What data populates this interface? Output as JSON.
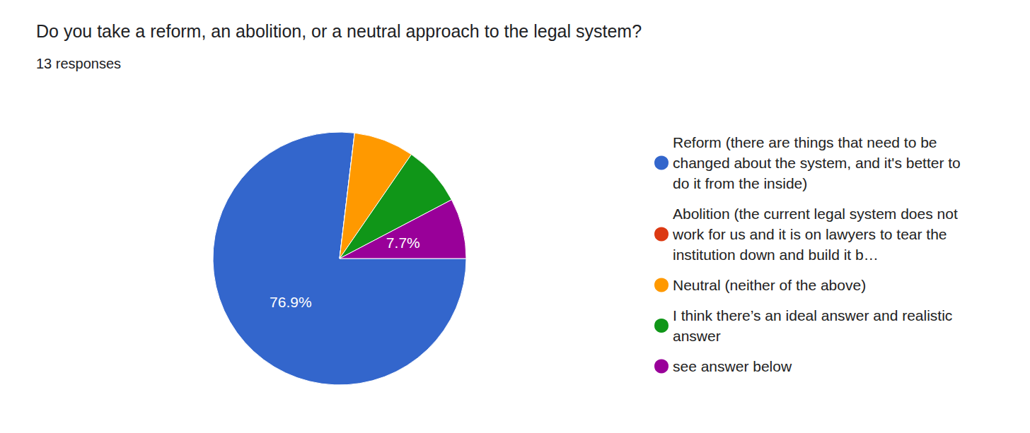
{
  "chart_data": {
    "type": "pie",
    "title": "Do you take a reform, an abolition, or a neutral approach to the legal system?",
    "subtitle": "13 responses",
    "categories": [
      "Reform (there are things that need to be changed about the system, and it's better to do it from the inside)",
      "Abolition (the current legal system does not work for us and it is on lawyers to tear the institution down and build it b…",
      "Neutral (neither of the above)",
      "I think there’s an ideal answer and realistic answer",
      "see answer below"
    ],
    "values": [
      76.9,
      0,
      7.7,
      7.7,
      7.7
    ],
    "value_labels": [
      "76.9%",
      null,
      null,
      null,
      "7.7%"
    ],
    "data_labels": true,
    "colors": [
      "#3366cc",
      "#dc3912",
      "#ff9900",
      "#109618",
      "#990099"
    ],
    "legend": "right"
  }
}
